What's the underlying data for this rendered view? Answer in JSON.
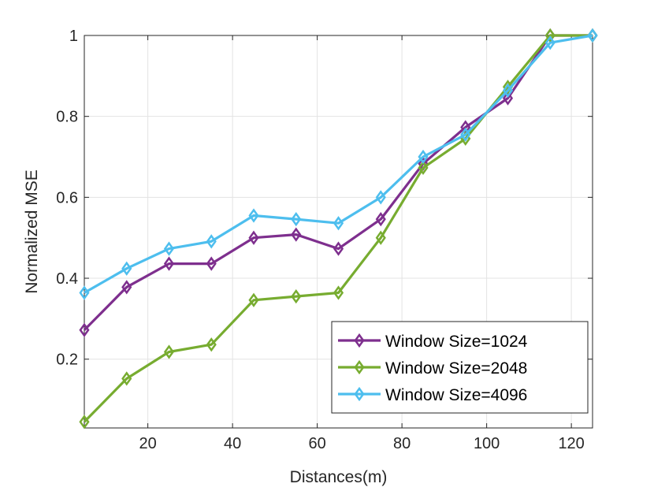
{
  "chart_data": {
    "type": "line",
    "xlabel": "Distances(m)",
    "ylabel": "Normalized MSE",
    "xlim": [
      5,
      125
    ],
    "ylim": [
      0.03,
      1.0
    ],
    "xticks": [
      20,
      40,
      60,
      80,
      100,
      120
    ],
    "yticks": [
      0.2,
      0.4,
      0.6,
      0.8,
      1.0
    ],
    "xtick_labels": [
      "20",
      "40",
      "60",
      "80",
      "100",
      "120"
    ],
    "ytick_labels": [
      "0.2",
      "0.4",
      "0.6",
      "0.8",
      "1"
    ],
    "grid": true,
    "legend_position": "bottom-right",
    "x": [
      5,
      15,
      25,
      35,
      45,
      55,
      65,
      75,
      85,
      95,
      105,
      115,
      125
    ],
    "series": [
      {
        "name": "Window Size=1024",
        "color": "#7E2F8E",
        "marker": "diamond",
        "values": [
          0.272,
          0.378,
          0.436,
          0.436,
          0.5,
          0.508,
          0.473,
          0.546,
          0.683,
          0.773,
          0.845,
          1.0,
          1.0
        ]
      },
      {
        "name": "Window Size=2048",
        "color": "#77AC30",
        "marker": "diamond",
        "values": [
          0.045,
          0.152,
          0.218,
          0.236,
          0.346,
          0.355,
          0.364,
          0.5,
          0.673,
          0.745,
          0.873,
          1.0,
          1.0
        ]
      },
      {
        "name": "Window Size=4096",
        "color": "#4DBEEE",
        "marker": "diamond",
        "values": [
          0.364,
          0.424,
          0.473,
          0.491,
          0.555,
          0.546,
          0.536,
          0.6,
          0.7,
          0.755,
          0.864,
          0.982,
          1.0
        ]
      }
    ]
  }
}
